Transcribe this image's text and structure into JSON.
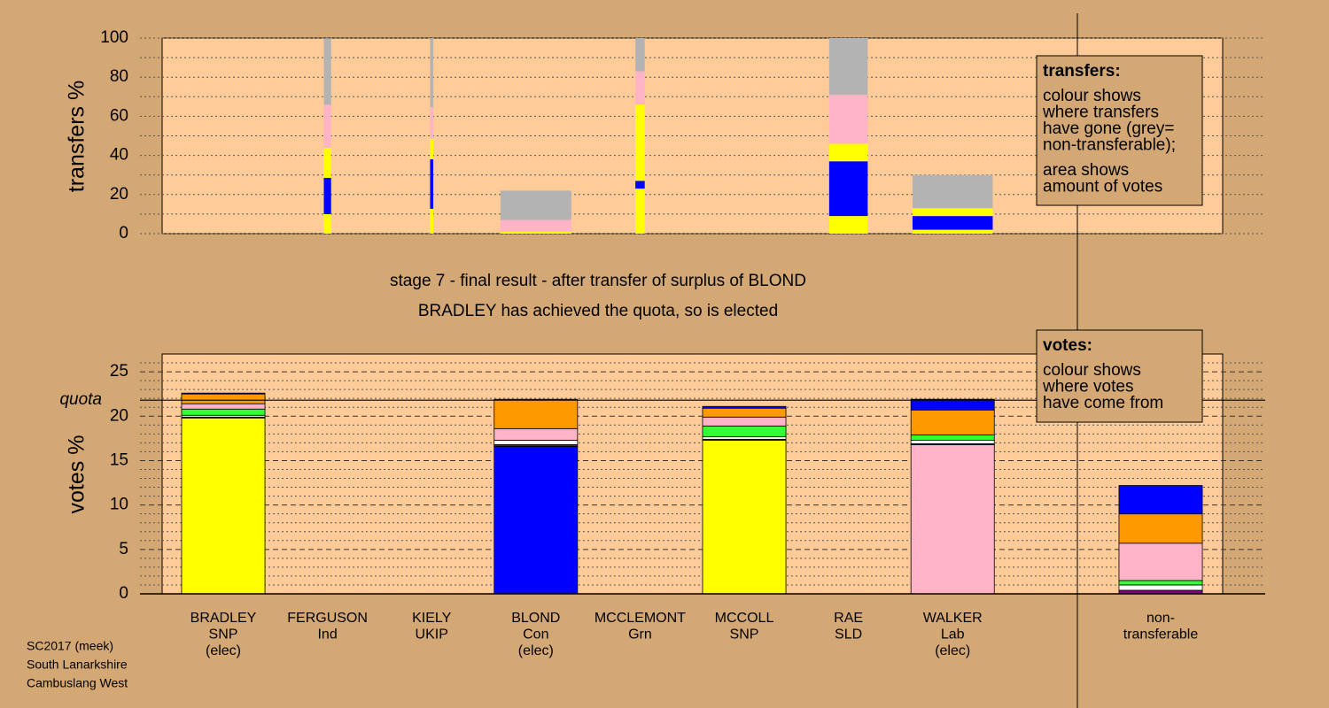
{
  "chart_data": [
    {
      "type": "bar",
      "stacked": true,
      "ylabel": "transfers %",
      "ylim": [
        0,
        100
      ],
      "yticks": [
        0,
        20,
        40,
        60,
        80,
        100
      ],
      "minor_yticks": [
        10,
        30,
        50,
        70,
        90
      ],
      "grid": true,
      "widths": [
        null,
        0.07,
        0.03,
        0.68,
        0.09,
        null,
        0.37,
        0.77,
        null
      ],
      "series": [
        {
          "color": "#ffff00",
          "values": [
            null,
            10,
            12.7,
            0.5,
            23,
            null,
            9,
            2,
            null
          ]
        },
        {
          "color": "#0000ff",
          "values": [
            null,
            18.5,
            25.3,
            0,
            4,
            null,
            28,
            7,
            null
          ]
        },
        {
          "color": "#ffff00",
          "values": [
            null,
            15.4,
            10.4,
            0.5,
            39,
            null,
            9,
            4,
            null
          ]
        },
        {
          "color": "#ffb3c6",
          "values": [
            null,
            22,
            16.3,
            6,
            17,
            null,
            25,
            0,
            null
          ]
        },
        {
          "color": "#b3b3b3",
          "values": [
            null,
            34,
            35.3,
            15,
            17,
            null,
            29,
            17,
            null
          ]
        }
      ],
      "note": {
        "heading": "transfers:",
        "paragraphs": [
          [
            "colour shows",
            "where transfers",
            "have gone (grey=",
            "non-transferable);"
          ],
          [
            "area shows",
            "amount of votes"
          ]
        ]
      }
    },
    {
      "type": "bar",
      "stacked": true,
      "ylabel": "votes %",
      "title": "stage 7 - final result - after transfer of surplus of BLOND",
      "subtitle": "BRADLEY has achieved the quota, so is elected",
      "ylim": [
        0,
        27
      ],
      "yticks": [
        0,
        5,
        10,
        15,
        20,
        25
      ],
      "minor_yticks": [
        1,
        2,
        3,
        4,
        6,
        7,
        8,
        9,
        11,
        12,
        13,
        14,
        16,
        17,
        18,
        19,
        21,
        22,
        23,
        24,
        26
      ],
      "grid": true,
      "quota": 21.8,
      "quota_label": "quota",
      "categories": [
        [
          "BRADLEY",
          "SNP",
          "(elec)"
        ],
        [
          "FERGUSON",
          "Ind"
        ],
        [
          "KIELY",
          "UKIP"
        ],
        [
          "BLOND",
          "Con",
          "(elec)"
        ],
        [
          "MCCLEMONT",
          "Grn"
        ],
        [
          "MCCOLL",
          "SNP"
        ],
        [
          "RAE",
          "SLD"
        ],
        [
          "WALKER",
          "Lab",
          "(elec)"
        ],
        [
          "non-",
          "transferable"
        ]
      ],
      "series": [
        {
          "colors": [
            "#ffff00",
            "#ffffff",
            "#800080",
            "#0000ff",
            "#33ff33",
            "#ffff00",
            "#ff9900",
            "#ffb3c6",
            "#b3b3b3"
          ],
          "values": [
            19.8,
            0,
            0,
            16.6,
            0,
            17.3,
            0,
            16.8,
            0
          ]
        },
        {
          "color": "#800080",
          "values": [
            0.1,
            0,
            0,
            0.2,
            0,
            0.1,
            0,
            0.1,
            0.4
          ]
        },
        {
          "color": "#ffffff",
          "values": [
            0.2,
            0,
            0,
            0.5,
            0,
            0.3,
            0,
            0.4,
            0.6
          ]
        },
        {
          "color": "#33ff33",
          "values": [
            0.7,
            0,
            0,
            0,
            0,
            1.2,
            0,
            0.6,
            0.5
          ]
        },
        {
          "color": "#ffb3c6",
          "values": [
            0.6,
            0,
            0,
            1.3,
            0,
            1.0,
            0,
            0,
            4.2
          ]
        },
        {
          "color": "#ff9900",
          "values": [
            1.1,
            0,
            0,
            3.3,
            0,
            1.0,
            0,
            2.8,
            3.3
          ]
        },
        {
          "color": "#0000ff",
          "values": [
            0.1,
            0,
            0,
            0,
            0,
            0.2,
            0,
            1.2,
            3.2
          ]
        }
      ],
      "note": {
        "heading": "votes:",
        "paragraphs": [
          [
            "colour shows",
            "where votes",
            "have come from"
          ]
        ]
      }
    }
  ],
  "footer": [
    "SC2017 (meek)",
    "South Lanarkshire",
    "Cambuslang West"
  ]
}
